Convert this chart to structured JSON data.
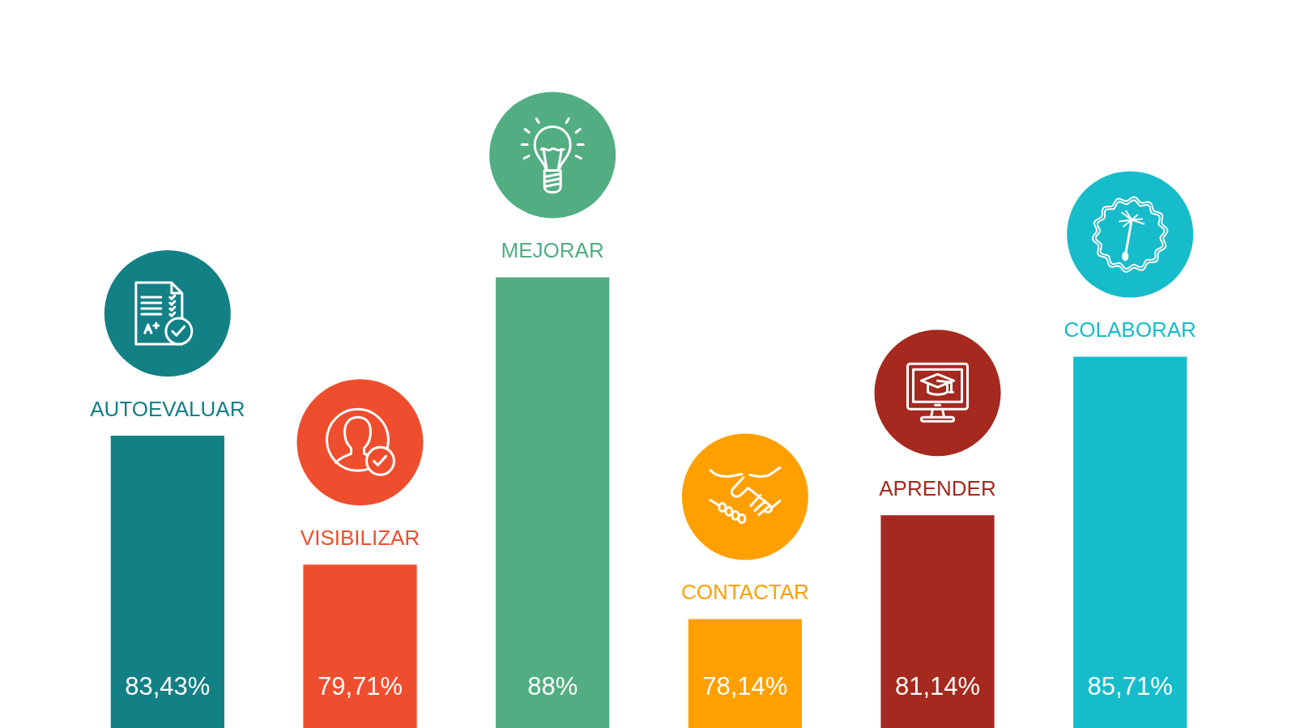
{
  "chart_data": {
    "type": "bar",
    "categories": [
      "AUTOEVALUAR",
      "VISIBILIZAR",
      "MEJORAR",
      "CONTACTAR",
      "APRENDER",
      "COLABORAR"
    ],
    "values": [
      83.43,
      79.71,
      88,
      78.14,
      81.14,
      85.71
    ],
    "value_labels": [
      "83,43%",
      "79,71%",
      "88%",
      "78,14%",
      "81,14%",
      "85,71%"
    ],
    "colors": [
      "#138086",
      "#ef4e2e",
      "#52ae82",
      "#ffa000",
      "#a5291e",
      "#17bccb"
    ],
    "ylim": [
      75,
      96
    ],
    "tick_labels": false
  }
}
